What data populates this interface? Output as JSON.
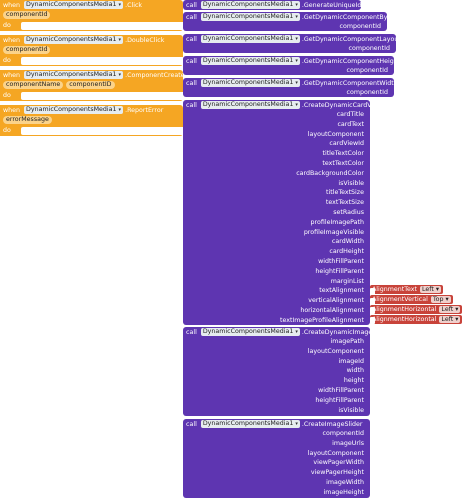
{
  "component": "DynamicComponentsMedia1",
  "keywords": {
    "when": "when",
    "do": "do",
    "call": "call"
  },
  "events": [
    {
      "name": ".Click",
      "params": [
        "componentId"
      ]
    },
    {
      "name": ".DoubleClick",
      "params": [
        "componentId"
      ]
    },
    {
      "name": ".ComponentCreated",
      "params": [
        "componentName",
        "componentID"
      ]
    },
    {
      "name": ".ReportError",
      "params": [
        "errorMessage"
      ]
    }
  ],
  "calls": [
    {
      "method": ".GenerateUniqueId",
      "args": []
    },
    {
      "method": ".GetDynamicComponentById",
      "args": [
        "componentId"
      ]
    },
    {
      "method": ".GetDynamicComponentLayoutById",
      "args": [
        "componentId"
      ]
    },
    {
      "method": ".GetDynamicComponentHeight",
      "args": [
        "componentId"
      ]
    },
    {
      "method": ".GetDynamicComponentWidth",
      "args": [
        "componentId"
      ]
    }
  ],
  "card": {
    "method": ".CreateDynamicCardView",
    "args": [
      "cardTitle",
      "cardText",
      "layoutComponent",
      "cardViewId",
      "titleTextColor",
      "textTextColor",
      "cardBackgroundColor",
      "isVisible",
      "titleTextSize",
      "textTextSize",
      "setRadius",
      "profileImagePath",
      "profileImageVisible",
      "cardWidth",
      "cardHeight",
      "widthFillParent",
      "heightFillParent",
      "marginList",
      "textAlignment",
      "verticalAlignment",
      "horizontalAlignment",
      "textImageProfileAlignment"
    ],
    "alignments": [
      {
        "block": "AlignmentText",
        "value": "Left"
      },
      {
        "block": "AlignmentVertical",
        "value": "Top"
      },
      {
        "block": "AlignmentHorizontal",
        "value": "Left"
      },
      {
        "block": "AlignmentHorizontal",
        "value": "Left"
      }
    ]
  },
  "image": {
    "method": ".CreateDynamicImage",
    "args": [
      "imagePath",
      "layoutComponent",
      "imageId",
      "width",
      "height",
      "widthFillParent",
      "heightFillParent",
      "isVisible"
    ]
  },
  "slider": {
    "method": ".CreateImageSlider",
    "args": [
      "componentId",
      "imageUrls",
      "layoutComponent",
      "viewPagerWidth",
      "viewPagerHeight",
      "imageWidth",
      "imageHeight"
    ]
  },
  "colors": {
    "event": "#f5a623",
    "method": "#5e35b1",
    "alignment": "#c8433a"
  }
}
